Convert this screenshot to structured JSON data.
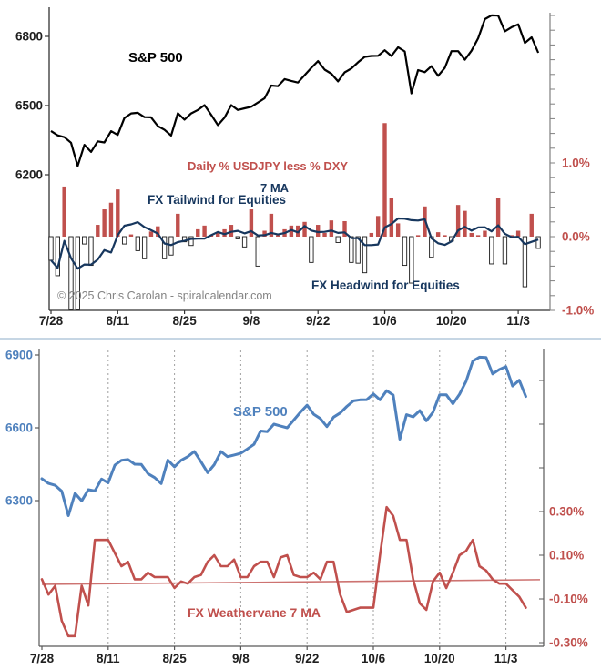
{
  "copyright": "© 2025 Chris Carolan - spiralcalendar.com",
  "colors": {
    "sp500_top": "#000000",
    "sp500_bottom": "#4f81bd",
    "bar_positive": "#c0504d",
    "bar_negative_fill": "#ffffff",
    "bar_negative_stroke": "#1a1a1a",
    "ma7": "#17375e",
    "weathervane": "#c0504d",
    "trendline": "#cd7371",
    "red_label": "#c0504d",
    "blue_label": "#4f81bd",
    "dark_label": "#1f1f1f",
    "axis_dark": "#333333",
    "axis_gray": "#808080",
    "gridline": "#a0a0a0",
    "separator": "#b3c9dc"
  },
  "chart_data": [
    {
      "type": "line+bar",
      "title": "S&P 500",
      "x_tick_labels": [
        "7/28",
        "8/11",
        "8/25",
        "9/8",
        "9/22",
        "10/6",
        "10/20",
        "11/3"
      ],
      "x_tick_indices": [
        0,
        10,
        20,
        30,
        40,
        50,
        60,
        70
      ],
      "left_axis": {
        "tick_labels": [
          "6800",
          "6500",
          "6200"
        ],
        "tick_values": [
          6800,
          6500,
          6200
        ],
        "min": 6200,
        "max": 6800
      },
      "right_axis": {
        "tick_labels": [
          "1.0%",
          "0.0%",
          "-1.0%"
        ],
        "tick_values": [
          1.0,
          0.0,
          -1.0
        ],
        "minor_tick_step": 0.2,
        "min": -1.0,
        "max": 3.0
      },
      "annotations": {
        "series_bar_label": "Daily % USDJPY less % DXY",
        "ma_label": "7 MA",
        "tailwind_label": "FX Tailwind for Equities",
        "headwind_label": "FX Headwind for Equities"
      },
      "series": [
        {
          "name": "S&P 500",
          "type": "line",
          "axis": "left",
          "values": [
            6390,
            6371,
            6363,
            6339,
            6238,
            6330,
            6299,
            6345,
            6340,
            6389,
            6373,
            6446,
            6466,
            6469,
            6450,
            6449,
            6411,
            6395,
            6370,
            6467,
            6439,
            6466,
            6481,
            6502,
            6460,
            6415,
            6448,
            6502,
            6481,
            6488,
            6495,
            6513,
            6532,
            6587,
            6584,
            6615,
            6607,
            6600,
            6632,
            6664,
            6693,
            6656,
            6638,
            6605,
            6644,
            6661,
            6688,
            6711,
            6715,
            6716,
            6740,
            6715,
            6753,
            6735,
            6553,
            6654,
            6645,
            6671,
            6629,
            6664,
            6736,
            6736,
            6699,
            6738,
            6792,
            6875,
            6891,
            6890,
            6822,
            6840,
            6852,
            6772,
            6796,
            6729
          ]
        },
        {
          "name": "Daily % USDJPY less % DXY",
          "type": "bar",
          "axis": "right",
          "values": [
            -0.32,
            -0.53,
            0.68,
            -1.0,
            -1.0,
            -0.1,
            -0.39,
            0.16,
            0.37,
            0.46,
            0.64,
            -0.1,
            0.03,
            -0.19,
            -0.3,
            0.07,
            0.14,
            -0.3,
            -0.25,
            0.31,
            -0.07,
            -0.12,
            0.1,
            0.15,
            0.02,
            0.05,
            0.1,
            0.16,
            -0.03,
            -0.14,
            0.37,
            -0.4,
            0.08,
            0.31,
            0.02,
            0.1,
            0.15,
            0.15,
            0.2,
            -0.35,
            0.16,
            0.05,
            0.22,
            -0.08,
            0.21,
            -0.35,
            -0.36,
            -0.49,
            0.05,
            0.28,
            1.54,
            0.53,
            0.18,
            -0.39,
            -0.63,
            0.02,
            0.41,
            -0.28,
            0.06,
            0.02,
            -0.06,
            0.43,
            0.35,
            0.05,
            0.02,
            0.08,
            -0.37,
            0.52,
            -0.37,
            0.02,
            0.08,
            -0.68,
            0.31,
            -0.16
          ]
        },
        {
          "name": "7 MA",
          "type": "line",
          "axis": "right",
          "derived_from": "Daily % USDJPY less % DXY",
          "window": 7
        }
      ]
    },
    {
      "type": "line",
      "title": "S&P 500",
      "x_tick_labels": [
        "7/28",
        "8/11",
        "8/25",
        "9/8",
        "9/22",
        "10/6",
        "10/20",
        "11/3"
      ],
      "x_tick_indices": [
        0,
        10,
        20,
        30,
        40,
        50,
        60,
        70
      ],
      "left_axis": {
        "tick_labels": [
          "6900",
          "6600",
          "6300"
        ],
        "tick_values": [
          6900,
          6600,
          6300
        ],
        "min": 6300,
        "max": 6900
      },
      "right_axis": {
        "tick_labels": [
          "0.30%",
          "0.10%",
          "-0.10%",
          "-0.30%"
        ],
        "tick_values": [
          0.3,
          0.1,
          -0.1,
          -0.3
        ],
        "minor_tick_step": 0.2,
        "min": -0.32,
        "max": 1.03
      },
      "annotations": {
        "weathervane_label": "FX Weathervane 7 MA"
      },
      "series": [
        {
          "name": "S&P 500",
          "type": "line",
          "axis": "left",
          "values": [
            6390,
            6371,
            6363,
            6339,
            6238,
            6330,
            6299,
            6345,
            6340,
            6389,
            6373,
            6446,
            6466,
            6469,
            6450,
            6449,
            6411,
            6395,
            6370,
            6467,
            6439,
            6466,
            6481,
            6502,
            6460,
            6415,
            6448,
            6502,
            6481,
            6488,
            6495,
            6513,
            6532,
            6587,
            6584,
            6615,
            6607,
            6600,
            6632,
            6664,
            6693,
            6656,
            6638,
            6605,
            6644,
            6661,
            6688,
            6711,
            6715,
            6716,
            6740,
            6715,
            6753,
            6735,
            6553,
            6654,
            6645,
            6671,
            6629,
            6664,
            6736,
            6736,
            6699,
            6738,
            6792,
            6875,
            6891,
            6890,
            6822,
            6840,
            6852,
            6772,
            6796,
            6729
          ]
        },
        {
          "name": "FX Weathervane 7 MA",
          "type": "line",
          "axis": "right",
          "values": [
            -0.01,
            -0.08,
            -0.04,
            -0.2,
            -0.27,
            -0.27,
            -0.04,
            -0.13,
            0.17,
            0.17,
            0.17,
            0.11,
            0.05,
            0.07,
            -0.01,
            -0.01,
            0.02,
            0.0,
            0.0,
            0.0,
            -0.05,
            -0.02,
            -0.03,
            0.0,
            0.01,
            0.07,
            0.1,
            0.05,
            0.05,
            0.08,
            0.0,
            0.0,
            0.05,
            0.07,
            0.07,
            0.0,
            0.09,
            0.1,
            0.01,
            0.0,
            0.0,
            0.02,
            -0.01,
            0.07,
            0.07,
            -0.08,
            -0.16,
            -0.15,
            -0.14,
            -0.14,
            -0.14,
            0.1,
            0.32,
            0.28,
            0.17,
            0.17,
            -0.01,
            -0.12,
            -0.15,
            -0.02,
            0.02,
            -0.05,
            0.02,
            0.1,
            0.12,
            0.17,
            0.05,
            0.03,
            -0.01,
            -0.03,
            -0.03,
            -0.06,
            -0.09,
            -0.14
          ]
        },
        {
          "name": "trendline",
          "type": "line",
          "axis": "right",
          "values": [
            -0.033,
            -0.012
          ]
        }
      ]
    }
  ]
}
